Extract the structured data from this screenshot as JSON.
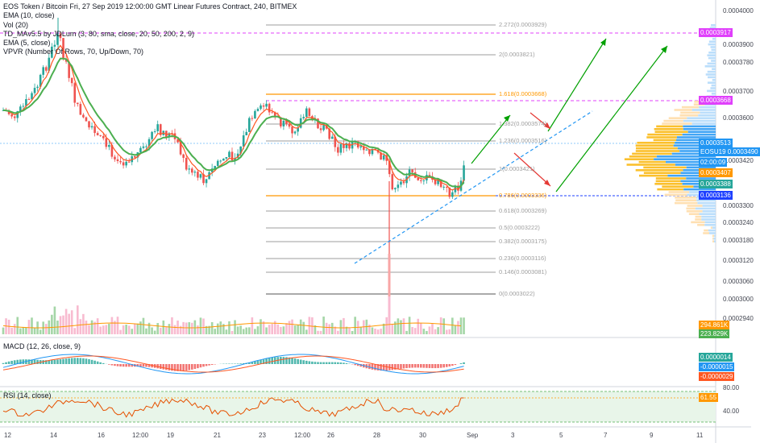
{
  "header": {
    "title": "EOS Token / Bitcoin Fri, 27 Sep 2019 12:00:00 GMT Linear Futures Contract, 240, BITMEX"
  },
  "indicators": [
    "EMA (10, close)",
    "Vol (20)",
    "TD_MAv5.5 by JDLum (3, 80, sma, close, 20, 50, 200, 2, 9)",
    "EMA (5, close)",
    "VPVR (Number Of Rows, 70, Up/Down, 70)"
  ],
  "macd": {
    "label": "MACD (12, 26, close, 9)"
  },
  "rsi": {
    "label": "RSI (14, close)"
  },
  "price_axis": {
    "ticks": [
      "0.0004000",
      "0.0003900",
      "0.0003780",
      "0.0003700",
      "0.0003600",
      "0.0003420",
      "0.0003300",
      "0.0003240",
      "0.0003180",
      "0.0003120",
      "0.0003060",
      "0.0003000",
      "0.0002940"
    ]
  },
  "price_tags": [
    {
      "text": "0.0003917",
      "color": "#e040fb"
    },
    {
      "text": "0.0003668",
      "color": "#e040fb"
    },
    {
      "text": "0.0003513",
      "color": "#2196f3"
    },
    {
      "text": "EOSU19  0.0003490",
      "color": "#2196f3"
    },
    {
      "text": "02:00:09",
      "color": "#2196f3"
    },
    {
      "text": "0.0003407",
      "color": "#ff9800"
    },
    {
      "text": "0.0003388",
      "color": "#26a69a"
    },
    {
      "text": "0.0003136",
      "color": "#1e40ff"
    },
    {
      "text": "294.861K",
      "color": "#ff9800"
    },
    {
      "text": "223.829K",
      "color": "#4caf50"
    }
  ],
  "macd_tags": [
    {
      "text": "0.0000014",
      "color": "#26a69a"
    },
    {
      "text": "-0.0000015",
      "color": "#2196f3"
    },
    {
      "text": "-0.0000029",
      "color": "#ff5722"
    }
  ],
  "rsi_axis": {
    "ticks": [
      "80.00",
      "40.00"
    ]
  },
  "rsi_tag": {
    "text": "61.55",
    "color": "#ff9800"
  },
  "fib_levels": [
    {
      "label": "2.272(0.0003929)"
    },
    {
      "label": "2(0.0003821)"
    },
    {
      "label": "1.618(0.0003668)"
    },
    {
      "label": "1.382(0.0003574)"
    },
    {
      "label": "1.236(0.0003516)"
    },
    {
      "label": "1(0.0003421)"
    },
    {
      "label": "0.786(0.0003336)"
    },
    {
      "label": "0.618(0.0003269)"
    },
    {
      "label": "0.5(0.0003222)"
    },
    {
      "label": "0.382(0.0003175)"
    },
    {
      "label": "0.236(0.0003116)"
    },
    {
      "label": "0.146(0.0003081)"
    },
    {
      "label": "0(0.0003022)"
    }
  ],
  "time_axis": {
    "labels": [
      "12",
      "14",
      "16",
      "12:00",
      "19",
      "21",
      "23",
      "12:00",
      "26",
      "28",
      "30",
      "Sep",
      "3",
      "5",
      "7",
      "9",
      "11"
    ]
  },
  "colors": {
    "up": "#26a69a",
    "down": "#ef5350",
    "ema10": "#4caf50",
    "ema5": "#ff5722",
    "fib_gold": "#ff9800",
    "magenta": "#e040fb",
    "trend_blue": "#2196f3",
    "arrow_green": "#00a000",
    "arrow_red": "#e53935"
  }
}
